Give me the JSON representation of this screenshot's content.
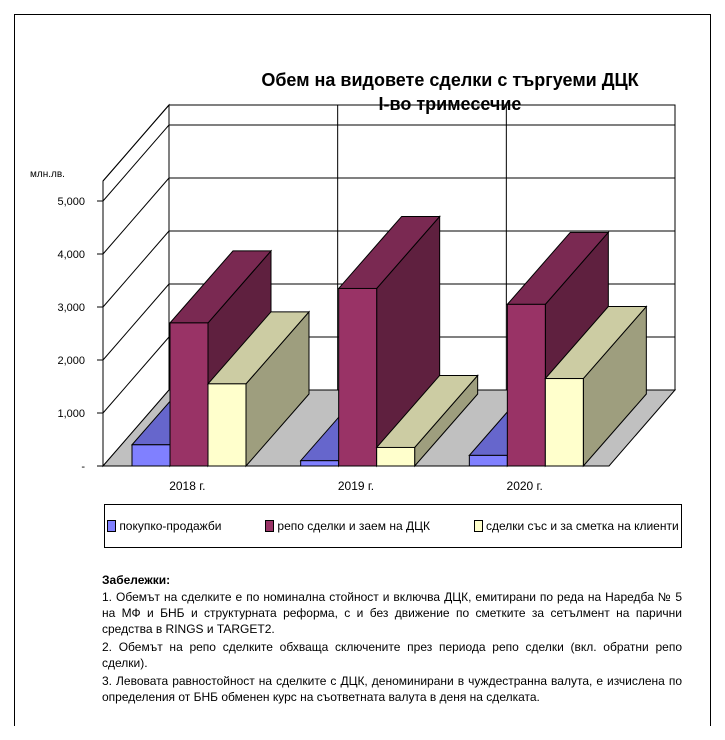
{
  "chart_data": {
    "type": "bar",
    "title_line1": "Обем на видовете сделки с търгуеми ДЦК",
    "title_line2": "I-во тримесечие",
    "ylabel": "млн.лв.",
    "ylim": [
      0,
      5000
    ],
    "yticks": [
      "-",
      "1,000",
      "2,000",
      "3,000",
      "4,000",
      "5,000"
    ],
    "grid": true,
    "style": "3d-clustered",
    "categories": [
      "2018 г.",
      "2019 г.",
      "2020 г."
    ],
    "series": [
      {
        "name": "покупко-продажби",
        "values": [
          400,
          100,
          200
        ],
        "color": "#8080ff"
      },
      {
        "name": "репо сделки и заем на ДЦК",
        "values": [
          2700,
          3350,
          3050
        ],
        "color": "#993366"
      },
      {
        "name": "сделки със и за сметка на клиенти",
        "values": [
          1550,
          350,
          1650
        ],
        "color": "#ffffcc"
      }
    ],
    "legend_position": "bottom"
  },
  "notes": {
    "heading": "Забележки:",
    "items": [
      "1. Обемът на сделките е по номинална стойност и включва ДЦК, емитирани по реда на Наредба № 5 на МФ и БНБ и структурната реформа, с и без движение по сметките за сетълмент на парични средства в RINGS и TARGET2.",
      "2. Обемът на репо сделките обхваща сключените през периода репо сделки (вкл. обратни репо сделки).",
      "3. Левовата равностойност на сделките с ДЦК, деноминирани в чуждестранна валута, е изчислена по определения от БНБ обменен курс на съответната валута в деня на сделката."
    ]
  }
}
